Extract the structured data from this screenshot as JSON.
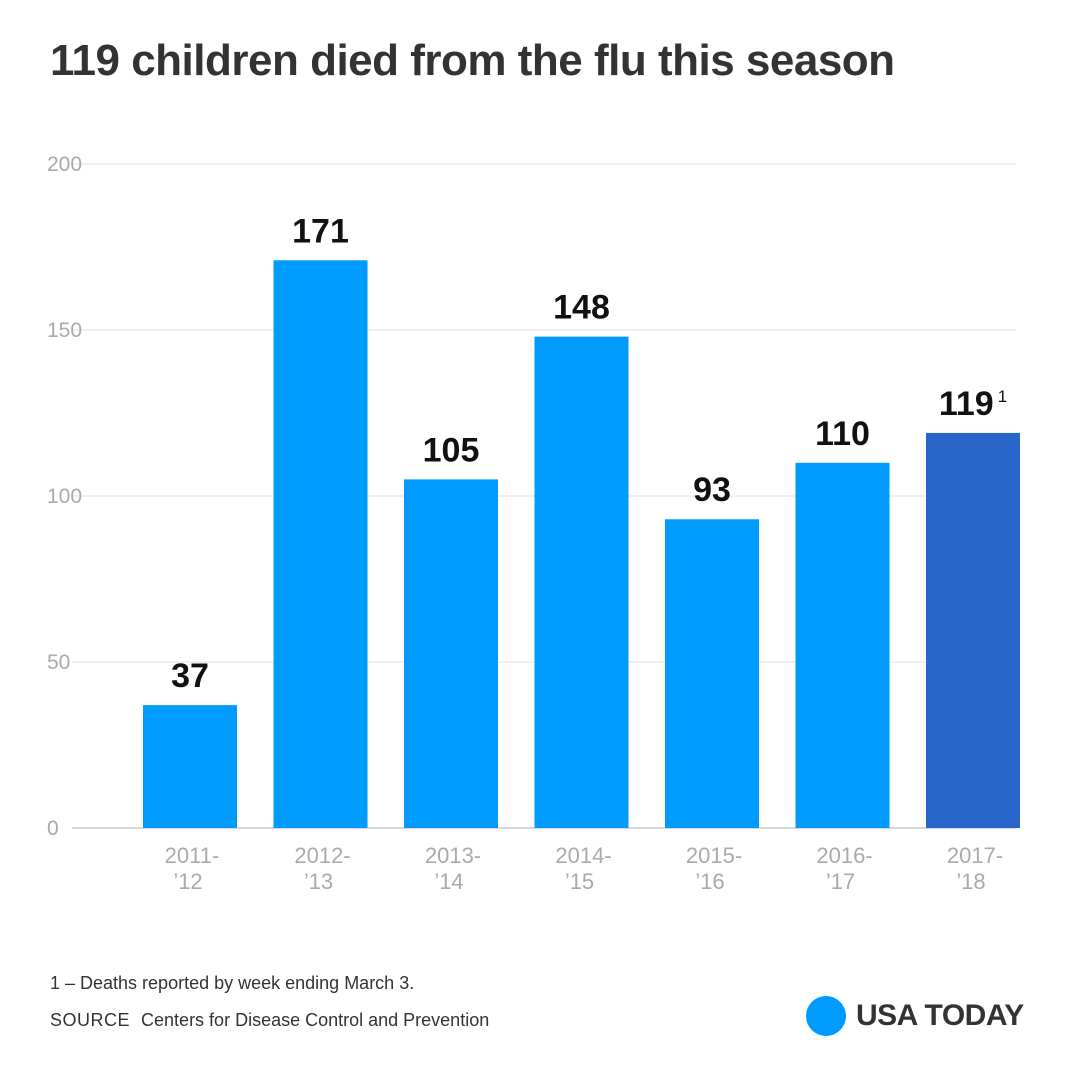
{
  "title": "119 children died from the flu this season",
  "footnote": "1 – Deaths reported by week ending March 3.",
  "source": {
    "label": "SOURCE",
    "text": "Centers for Disease Control and Prevention"
  },
  "brand": {
    "name": "USA TODAY",
    "dot_color": "#009BFF"
  },
  "colors": {
    "bar": "#009BFF",
    "highlight": "#2766C8",
    "grid": "#e0e0e0",
    "axis": "#cccccc"
  },
  "chart_data": {
    "type": "bar",
    "categories": [
      [
        "2011-",
        "’12"
      ],
      [
        "2012-",
        "’13"
      ],
      [
        "2013-",
        "’14"
      ],
      [
        "2014-",
        "’15"
      ],
      [
        "2015-",
        "’16"
      ],
      [
        "2016-",
        "’17"
      ],
      [
        "2017-",
        "’18"
      ]
    ],
    "values": [
      37,
      171,
      105,
      148,
      93,
      110,
      119
    ],
    "value_labels": [
      "37",
      "171",
      "105",
      "148",
      "93",
      "110",
      "119"
    ],
    "label_footnotes": [
      "",
      "",
      "",
      "",
      "",
      "",
      "1"
    ],
    "highlight_index": 6,
    "ylim": [
      0,
      200
    ],
    "yticks": [
      0,
      50,
      100,
      150,
      200
    ],
    "grid": true
  }
}
